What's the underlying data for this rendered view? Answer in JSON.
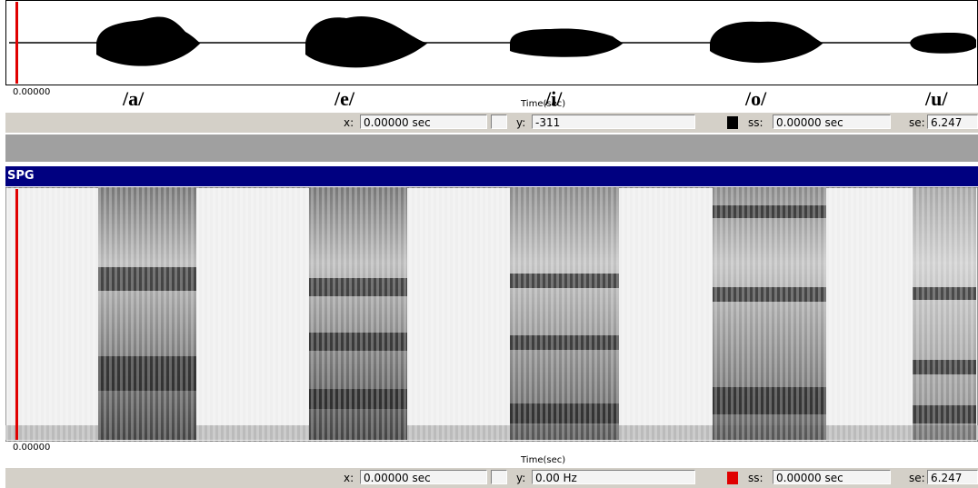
{
  "waveform_panel": {
    "start_time": "0.00000",
    "axis_label": "Time(sec)",
    "vowel_labels": [
      "/a/",
      "/e/",
      "/i/",
      "/o/",
      "/u/"
    ],
    "status": {
      "x_label": "x:",
      "x": "0.00000 sec",
      "y_label": "y:",
      "y": "-311",
      "ss_label": "ss:",
      "ss": "0.00000 sec",
      "se_label": "se:",
      "se": "6.247"
    }
  },
  "spectrogram_panel": {
    "title": "SPG",
    "start_time": "0.00000",
    "axis_label": "Time(sec)",
    "status": {
      "x_label": "x:",
      "x": "0.00000 sec",
      "y_label": "y:",
      "y": "0.00 Hz",
      "ss_label": "ss:",
      "ss": "0.00000 sec",
      "se_label": "se:",
      "se": "6.247"
    }
  }
}
